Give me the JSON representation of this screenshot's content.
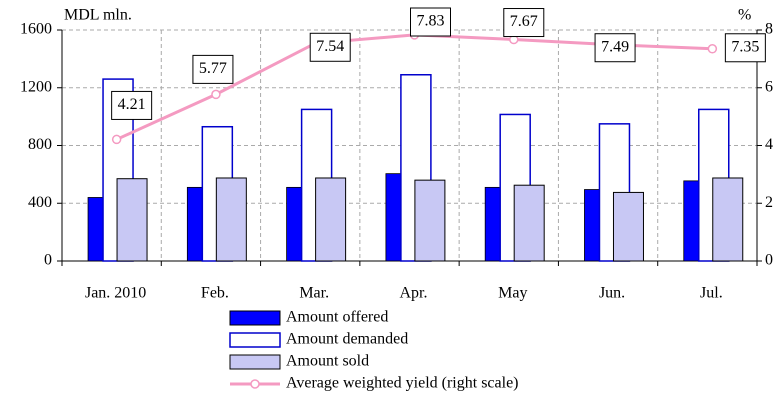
{
  "chart_data": {
    "type": "bar",
    "y_label": "MDL mln.",
    "y2_label": "%",
    "categories": [
      "Jan. 2010",
      "Feb.",
      "Mar.",
      "Apr.",
      "May",
      "Jun.",
      "Jul."
    ],
    "series": [
      {
        "name": "Amount offered",
        "type": "bar",
        "color": "#0000ff",
        "values": [
          440,
          510,
          510,
          605,
          510,
          495,
          555
        ]
      },
      {
        "name": "Amount demanded",
        "type": "bar",
        "color": "#0000cc",
        "values": [
          1260,
          930,
          1050,
          1290,
          1015,
          950,
          1050
        ]
      },
      {
        "name": "Amount sold",
        "type": "bar",
        "color": "#c8c8f4",
        "values": [
          570,
          575,
          575,
          560,
          525,
          475,
          575
        ]
      },
      {
        "name": "Average weighted yield (right scale)",
        "type": "line",
        "axis": "y2",
        "color": "#f49ac1",
        "values": [
          4.21,
          5.77,
          7.54,
          7.83,
          7.67,
          7.49,
          7.35
        ]
      }
    ],
    "ylim": [
      0,
      1600
    ],
    "yticks": [
      0,
      400,
      800,
      1200,
      1600
    ],
    "y2lim": [
      0,
      8
    ],
    "y2ticks": [
      0,
      2,
      4,
      6,
      8
    ],
    "grid": true,
    "legend": "bottom"
  }
}
